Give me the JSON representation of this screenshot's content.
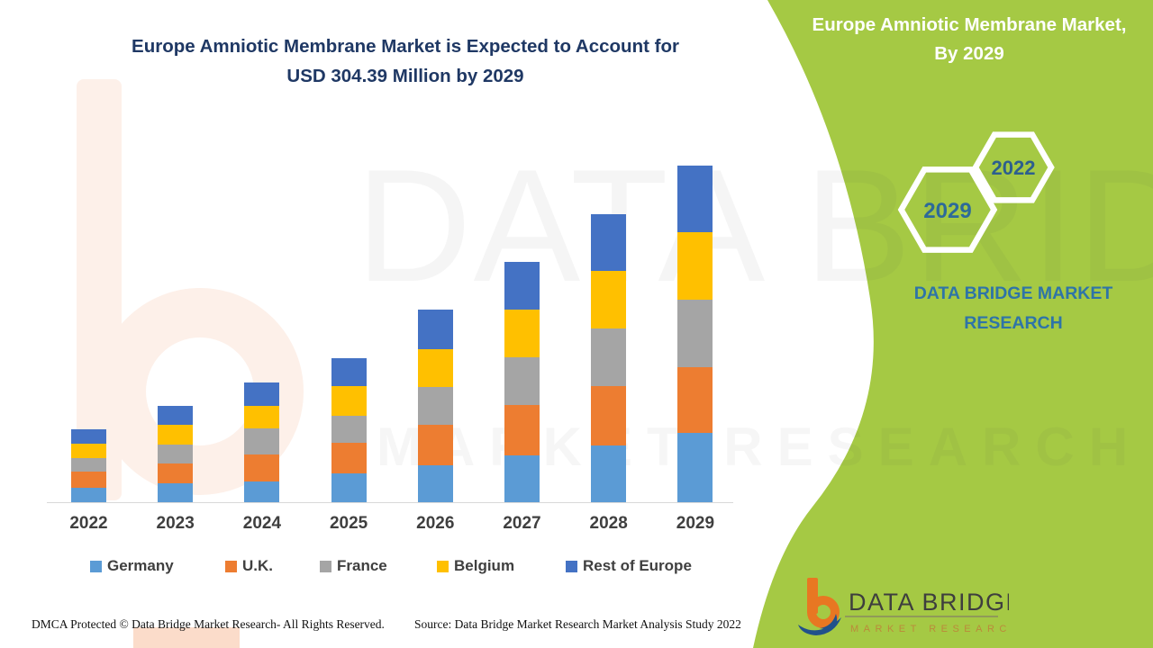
{
  "header": {
    "title_line1": "Europe Amniotic Membrane Market is Expected to Account for",
    "title_line2": "USD 304.39 Million by 2029"
  },
  "side_panel": {
    "title_line1": "Europe Amniotic Membrane Market,",
    "title_line2": "By 2029",
    "hexagon_back_label": "2022",
    "hexagon_front_label": "2029",
    "brand_line1": "DATA BRIDGE MARKET",
    "brand_line2": "RESEARCH",
    "panel_green": "#a5c944",
    "brand_text_blue": "#2e74a8"
  },
  "watermark": {
    "line1": "DATA BRIDGE",
    "line2": "MARKET RESEARCH"
  },
  "chart_data": {
    "type": "bar",
    "stacked": true,
    "title": "Europe Amniotic Membrane Market is Expected to Account for USD 304.39 Million by 2029",
    "unit": "USD Million",
    "categories": [
      "2022",
      "2023",
      "2024",
      "2025",
      "2026",
      "2027",
      "2028",
      "2029"
    ],
    "series": [
      {
        "name": "Germany",
        "color": "#5b9bd5",
        "values": [
          13.0,
          17.1,
          19.0,
          25.8,
          33.1,
          42.5,
          51.0,
          62.4
        ]
      },
      {
        "name": "U.K.",
        "color": "#ed7d31",
        "values": [
          14.4,
          17.6,
          24.4,
          27.7,
          36.6,
          45.5,
          53.9,
          59.6
        ]
      },
      {
        "name": "France",
        "color": "#a5a5a5",
        "values": [
          12.8,
          17.6,
          23.0,
          24.4,
          34.7,
          43.3,
          52.3,
          61.0
        ]
      },
      {
        "name": "Belgium",
        "color": "#ffc000",
        "values": [
          12.8,
          17.3,
          20.9,
          27.1,
          33.9,
          42.5,
          52.0,
          61.0
        ]
      },
      {
        "name": "Rest of Europe",
        "color": "#4472c4",
        "values": [
          13.0,
          17.1,
          21.1,
          25.2,
          35.8,
          43.3,
          51.0,
          60.4
        ]
      }
    ],
    "totals": [
      66.0,
      86.7,
      108.4,
      130.2,
      174.1,
      217.1,
      260.2,
      304.39
    ],
    "ylim": [
      0,
      310
    ],
    "gridlines": false,
    "y_axis_visible": false,
    "legend_position": "bottom"
  },
  "logo": {
    "name": "DATA BRIDGE",
    "tagline": "MARKET RESEARCH"
  },
  "footer": {
    "left": "DMCA Protected © Data Bridge Market Research- All Rights Reserved.",
    "source": "Source: Data Bridge Market Research Market Analysis Study 2022"
  }
}
